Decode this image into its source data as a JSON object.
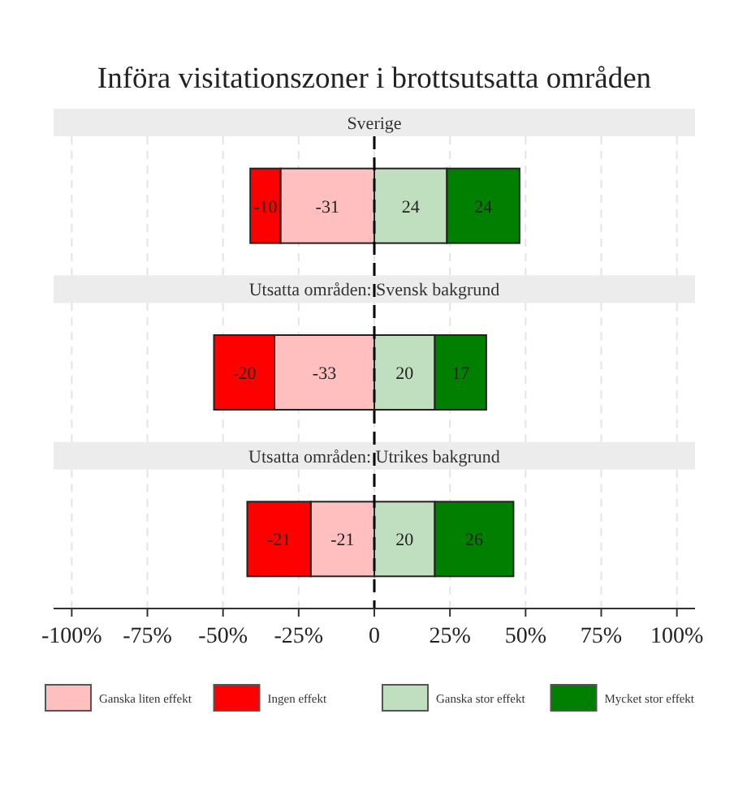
{
  "chart_data": {
    "type": "bar",
    "orientation": "horizontal",
    "stacked": true,
    "title": "Införa visitationszoner i brottsutsatta områden",
    "categories": [
      "Sverige",
      "Utsatta områden: Svensk bakgrund",
      "Utsatta områden: Utrikes bakgrund"
    ],
    "series": [
      {
        "name": "Ganska liten effekt",
        "color": "#ffbfbf",
        "values": [
          -31,
          -33,
          -21
        ]
      },
      {
        "name": "Ingen effekt",
        "color": "#ff0000",
        "values": [
          -10,
          -20,
          -21
        ]
      },
      {
        "name": "Ganska stor effekt",
        "color": "#bfdfbf",
        "values": [
          24,
          20,
          20
        ]
      },
      {
        "name": "Mycket stor effekt",
        "color": "#007f00",
        "values": [
          24,
          17,
          26
        ]
      }
    ],
    "xlim": [
      -106,
      106
    ],
    "xticks": [
      {
        "value": -100,
        "label": "-100%"
      },
      {
        "value": -75,
        "label": "-75%"
      },
      {
        "value": -50,
        "label": "-50%"
      },
      {
        "value": -25,
        "label": "-25%"
      },
      {
        "value": 0,
        "label": "0"
      },
      {
        "value": 25,
        "label": "25%"
      },
      {
        "value": 50,
        "label": "50%"
      },
      {
        "value": 75,
        "label": "75%"
      },
      {
        "value": 100,
        "label": "100%"
      }
    ],
    "grid": "x",
    "data_labels": true,
    "legend": "bottom",
    "ref_lines": [
      {
        "axis": "x",
        "value": 0,
        "line_style": "dashed",
        "color": "#000000"
      }
    ]
  }
}
